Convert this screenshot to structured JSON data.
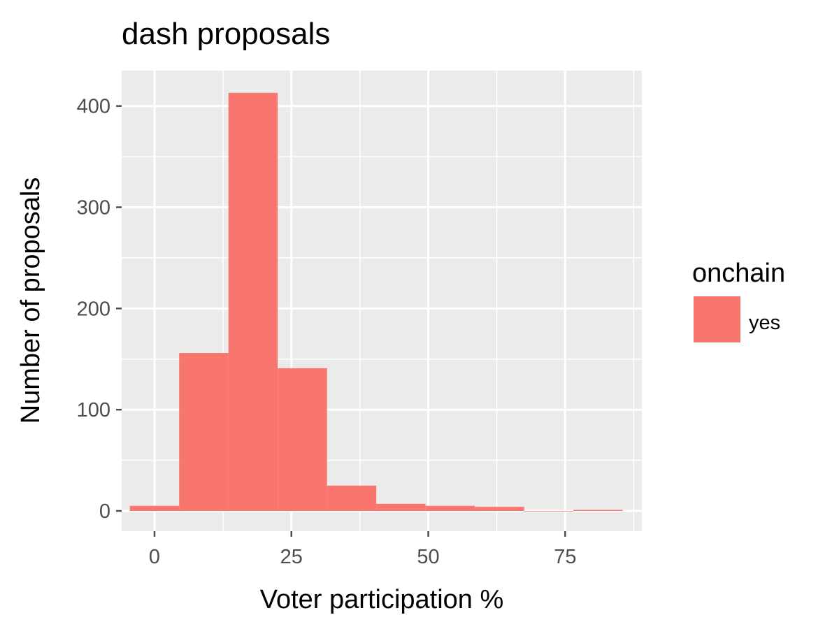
{
  "chart_data": {
    "type": "bar",
    "title": "dash proposals",
    "xlabel": "Voter participation %",
    "ylabel": "Number of proposals",
    "xlim": [
      -6,
      89
    ],
    "ylim": [
      -20,
      435
    ],
    "x_ticks": [
      0,
      25,
      50,
      75
    ],
    "y_ticks": [
      0,
      100,
      200,
      300,
      400
    ],
    "grid": true,
    "legend": {
      "title": "onchain",
      "placement": "right",
      "entries": [
        {
          "label": "yes",
          "color": "#F8766D"
        }
      ]
    },
    "bins": [
      {
        "x0": -4.5,
        "x1": 4.5,
        "value": 5
      },
      {
        "x0": 4.5,
        "x1": 13.5,
        "value": 156
      },
      {
        "x0": 13.5,
        "x1": 22.5,
        "value": 413
      },
      {
        "x0": 22.5,
        "x1": 31.5,
        "value": 141
      },
      {
        "x0": 31.5,
        "x1": 40.5,
        "value": 25
      },
      {
        "x0": 40.5,
        "x1": 49.5,
        "value": 7
      },
      {
        "x0": 49.5,
        "x1": 58.5,
        "value": 5
      },
      {
        "x0": 58.5,
        "x1": 67.5,
        "value": 4
      },
      {
        "x0": 67.5,
        "x1": 76.5,
        "value": 0
      },
      {
        "x0": 76.5,
        "x1": 85.5,
        "value": 1
      }
    ],
    "series": [
      {
        "name": "yes",
        "color": "#F8766D"
      }
    ],
    "colors": {
      "panel": "#EBEBEB",
      "grid": "#FFFFFF",
      "tick": "#4D4D4D",
      "bar": "#F8766D"
    }
  }
}
